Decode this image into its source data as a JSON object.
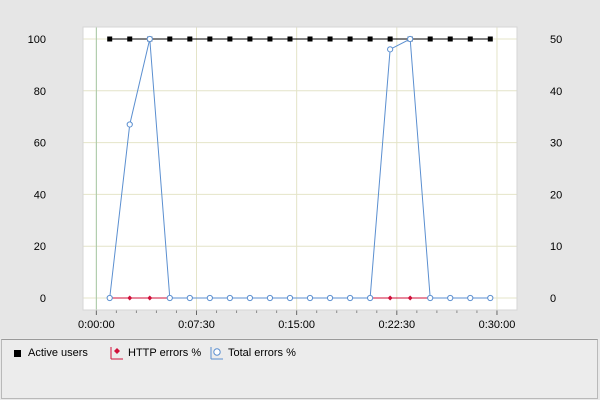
{
  "chart_data": {
    "type": "line",
    "x_ticks": [
      "0:00:00",
      "0:07:30",
      "0:15:00",
      "0:22:30",
      "0:30:00"
    ],
    "x_tick_seconds": [
      0,
      450,
      900,
      1350,
      1800
    ],
    "x_range_seconds": [
      -60,
      1890
    ],
    "y_left_ticks": [
      "100",
      "80",
      "60",
      "40",
      "20",
      "0"
    ],
    "y_left_range": [
      0,
      100
    ],
    "y_right_ticks": [
      "50",
      "40",
      "30",
      "20",
      "10",
      "0"
    ],
    "y_right_range": [
      0,
      50
    ],
    "grid": true,
    "legend_position": "bottom",
    "series": [
      {
        "name": "Active users",
        "axis": "right",
        "color": "#000000",
        "marker": "square",
        "x_seconds": [
          60,
          150,
          240,
          330,
          420,
          510,
          600,
          690,
          780,
          870,
          960,
          1050,
          1140,
          1230,
          1320,
          1410,
          1500,
          1590,
          1680,
          1770
        ],
        "values": [
          50,
          50,
          50,
          50,
          50,
          50,
          50,
          50,
          50,
          50,
          50,
          50,
          50,
          50,
          50,
          50,
          50,
          50,
          50,
          50
        ]
      },
      {
        "name": "HTTP errors %",
        "axis": "left",
        "color": "#d0103a",
        "marker": "diamond",
        "x_seconds": [
          60,
          150,
          240,
          330,
          420,
          510,
          600,
          690,
          780,
          870,
          960,
          1050,
          1140,
          1230,
          1320,
          1410,
          1500,
          1590,
          1680,
          1770
        ],
        "values": [
          0,
          0,
          0,
          0,
          0,
          0,
          0,
          0,
          0,
          0,
          0,
          0,
          0,
          0,
          0,
          0,
          0,
          0,
          0,
          0
        ]
      },
      {
        "name": "Total errors %",
        "axis": "left",
        "color": "#5b8fd0",
        "marker": "circle",
        "x_seconds": [
          60,
          150,
          240,
          330,
          420,
          510,
          600,
          690,
          780,
          870,
          960,
          1050,
          1140,
          1230,
          1320,
          1410,
          1500,
          1590,
          1680,
          1770
        ],
        "values": [
          0,
          67,
          100,
          0,
          0,
          0,
          0,
          0,
          0,
          0,
          0,
          0,
          0,
          0,
          96,
          100,
          0,
          0,
          0,
          0
        ]
      }
    ]
  },
  "legend": {
    "items": [
      {
        "label": "Active users",
        "color": "#000000",
        "marker": "square"
      },
      {
        "label": "HTTP errors %",
        "color": "#d0103a",
        "marker": "diamond"
      },
      {
        "label": "Total errors %",
        "color": "#5b8fd0",
        "marker": "circle"
      }
    ]
  }
}
